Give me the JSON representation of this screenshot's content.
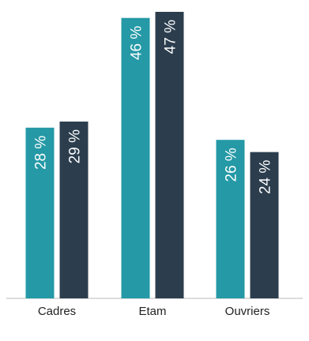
{
  "chart_data": {
    "type": "bar",
    "categories": [
      "Cadres",
      "Etam",
      "Ouvriers"
    ],
    "series": [
      {
        "values": [
          28,
          46,
          26
        ],
        "labels": [
          "28 %",
          "46 %",
          "26 %"
        ],
        "color": "#2599a6"
      },
      {
        "values": [
          29,
          47,
          24
        ],
        "labels": [
          "29 %",
          "47 %",
          "24 %"
        ],
        "color": "#2c3e4e"
      }
    ],
    "ylim": [
      0,
      47
    ],
    "grid": false,
    "axis_color": "#dddddd"
  }
}
